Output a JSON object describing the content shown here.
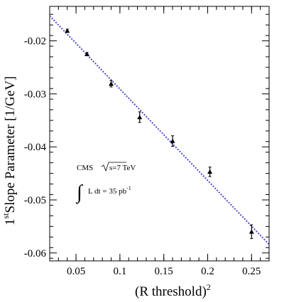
{
  "chart_data": {
    "type": "scatter",
    "xlabel": "(R threshold)",
    "xlabel_sup": "2",
    "ylabel_main": "Slope Parameter [1/GeV]",
    "ylabel_prefix": "1",
    "ylabel_sup": "st",
    "xlim": [
      0.02,
      0.27
    ],
    "ylim": [
      -0.0615,
      -0.0135
    ],
    "x_ticks": [
      0.05,
      0.1,
      0.15,
      0.2,
      0.25
    ],
    "x_tick_labels": [
      "0.05",
      "0.1",
      "0.15",
      "0.2",
      "0.25"
    ],
    "y_ticks": [
      -0.02,
      -0.03,
      -0.04,
      -0.05,
      -0.06
    ],
    "y_tick_labels": [
      "-0.02",
      "-0.03",
      "-0.04",
      "-0.05",
      "-0.06"
    ],
    "grid": false,
    "series": [
      {
        "marker": "triangle",
        "color": "#000000",
        "x": [
          0.04,
          0.0625,
          0.09,
          0.1225,
          0.16,
          0.2025,
          0.25
        ],
        "y": [
          -0.0181,
          -0.0225,
          -0.0281,
          -0.0344,
          -0.0389,
          -0.0447,
          -0.056
        ],
        "err": [
          0.0003,
          0.0003,
          0.0006,
          0.001,
          0.001,
          0.0009,
          0.0013
        ]
      }
    ],
    "fit_line": {
      "style": "dotted",
      "color": "#4b4bcc",
      "x": [
        0.02,
        0.27
      ],
      "y": [
        -0.0153,
        -0.0584
      ]
    },
    "annotations": {
      "experiment": "CMS",
      "energy": "s=7 TeV",
      "luminosity": "L dt = 35 pb",
      "luminosity_sup": "-1"
    }
  }
}
